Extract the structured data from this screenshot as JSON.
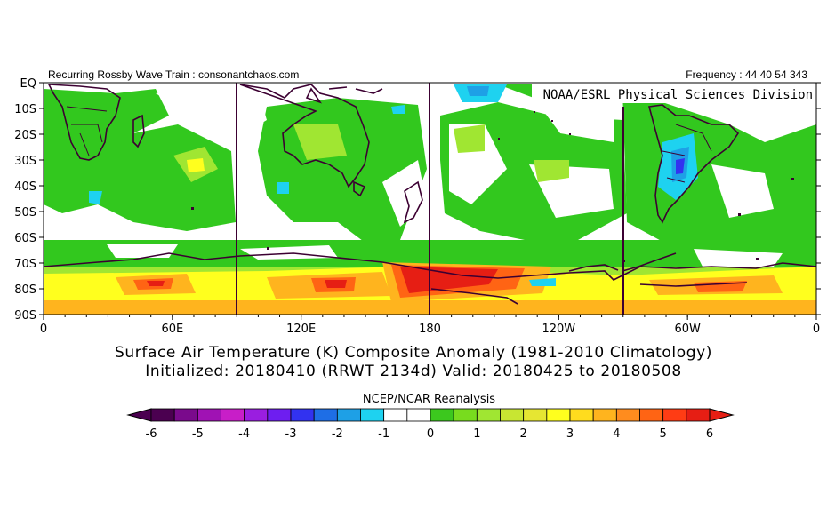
{
  "header": {
    "left": "Recurring Rossby Wave Train : consonantchaos.com",
    "right": "Frequency : 44 40 54 343"
  },
  "map": {
    "credit": "NOAA/ESRL Physical Sciences Division",
    "lat_labels": [
      "EQ",
      "10S",
      "20S",
      "30S",
      "40S",
      "50S",
      "60S",
      "70S",
      "80S",
      "90S"
    ],
    "lon_labels": [
      "0",
      "60E",
      "120E",
      "180",
      "120W",
      "60W",
      "0"
    ]
  },
  "caption": {
    "line1": "Surface Air Temperature (K) Composite Anomaly (1981-2010 Climatology)",
    "line2": "Initialized: 20180410 (RRWT 2134d) Valid: 20180425 to 20180508"
  },
  "colorbar": {
    "title": "NCEP/NCAR Reanalysis",
    "tick_labels": [
      "-6",
      "-5",
      "-4",
      "-3",
      "-2",
      "-1",
      "0",
      "1",
      "2",
      "3",
      "4",
      "5",
      "6"
    ],
    "colors": [
      "#4b0050",
      "#7a0a8c",
      "#a012b4",
      "#c81ec8",
      "#9a1ee0",
      "#6e1ef0",
      "#3232f0",
      "#1e6ee6",
      "#1ea0e6",
      "#1ed2f0",
      "#ffffff",
      "#ffffff",
      "#3cc81e",
      "#78dc1e",
      "#a0e632",
      "#c8e632",
      "#e6e632",
      "#ffff1e",
      "#ffdc1e",
      "#ffb41e",
      "#ff8c1e",
      "#ff6414",
      "#ff3c14",
      "#e61e14"
    ]
  },
  "chart_data": {
    "type": "heatmap",
    "title": "Surface Air Temperature (K) Composite Anomaly (1981-2010 Climatology)",
    "subtitle": "Initialized: 20180410 (RRWT 2134d) Valid: 20180425 to 20180508",
    "source": "NCEP/NCAR Reanalysis",
    "units": "K",
    "x_ticks": [
      "0",
      "60E",
      "120E",
      "180",
      "120W",
      "60W",
      "0"
    ],
    "y_ticks": [
      "EQ",
      "10S",
      "20S",
      "30S",
      "40S",
      "50S",
      "60S",
      "70S",
      "80S",
      "90S"
    ],
    "color_scale_range": [
      -6,
      6
    ],
    "features": [
      {
        "lon": 180,
        "lat": -75,
        "anomaly": 6
      },
      {
        "lon": 165,
        "lat": -78,
        "anomaly": 5
      },
      {
        "lon": 135,
        "lat": -78,
        "anomaly": 5
      },
      {
        "lon": 58,
        "lat": -77,
        "anomaly": 5
      },
      {
        "lon": -105,
        "lat": -78,
        "anomaly": 4
      },
      {
        "lon": -35,
        "lat": -77,
        "anomaly": 4
      },
      {
        "lon": 30,
        "lat": -80,
        "anomaly": 3
      },
      {
        "lon": 105,
        "lat": -77,
        "anomaly": 3
      },
      {
        "lon": -75,
        "lat": -32,
        "anomaly": -2
      },
      {
        "lon": -162,
        "lat": -3,
        "anomaly": -2
      },
      {
        "lon": 120,
        "lat": -2,
        "anomaly": -1
      },
      {
        "lon": -140,
        "lat": -77,
        "anomaly": -1
      },
      {
        "lon": 98,
        "lat": -40,
        "anomaly": -1
      },
      {
        "lon": 55,
        "lat": -35,
        "anomaly": 2
      },
      {
        "lon": 113,
        "lat": -25,
        "anomaly": 2
      }
    ]
  }
}
